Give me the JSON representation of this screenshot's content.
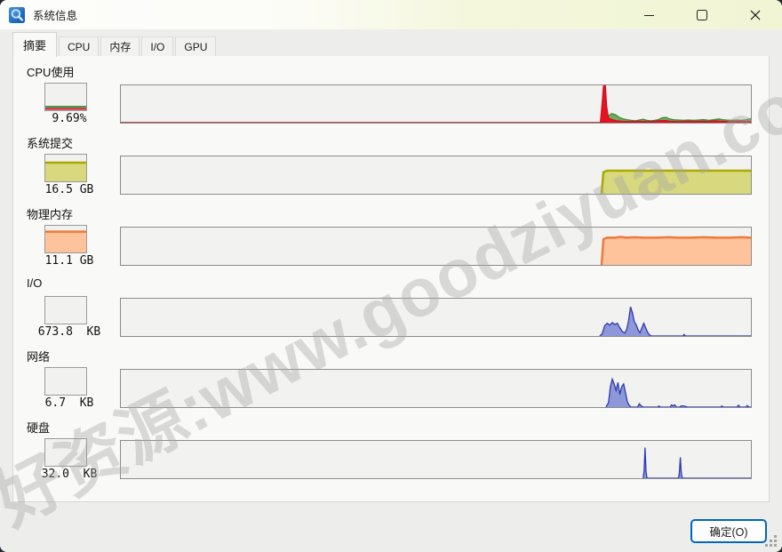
{
  "window": {
    "title": "系统信息"
  },
  "tabs": [
    {
      "label": "摘要",
      "active": true
    },
    {
      "label": "CPU",
      "active": false
    },
    {
      "label": "内存",
      "active": false
    },
    {
      "label": "I/O",
      "active": false
    },
    {
      "label": "GPU",
      "active": false
    }
  ],
  "metrics": [
    {
      "id": "cpu-usage",
      "label": "CPU使用",
      "value": "9.69%"
    },
    {
      "id": "system-commit",
      "label": "系统提交",
      "value": "16.5 GB"
    },
    {
      "id": "physical-memory",
      "label": "物理内存",
      "value": "11.1 GB"
    },
    {
      "id": "io",
      "label": "I/O",
      "value": "673.8  KB"
    },
    {
      "id": "network",
      "label": "网络",
      "value": "6.7  KB"
    },
    {
      "id": "disk",
      "label": "硬盘",
      "value": "32.0  KB"
    }
  ],
  "footer": {
    "ok_label": "确定(O)"
  },
  "watermark": {
    "text": "好资源:www.goodziyuan.com"
  },
  "colors": {
    "accent_blue": "#0067c0",
    "titlebar_tint": "#f1f5d4",
    "cpu_green_fill": "#6fae62",
    "cpu_green_stroke": "#3c8f3c",
    "cpu_kernel_red": "#e81123",
    "commit_fill": "#d8d87e",
    "commit_stroke": "#a9a902",
    "memory_fill": "#ffc39c",
    "memory_stroke": "#f0783a",
    "io_fill": "#8d97da",
    "io_stroke": "#2e3ab0",
    "graph_bg": "#f2f2f0"
  },
  "chart_data": {
    "type": "area",
    "x_range": [
      0,
      100
    ],
    "y_range": [
      0,
      100
    ],
    "x_meaning": "time, percent of history window (100 = now); activity begins ~76%",
    "y_meaning": "percent of graph full-scale height",
    "graphs": [
      {
        "name": "cpu-usage-history",
        "series": [
          {
            "name": "cpu-total",
            "fill": "#6fae62",
            "stroke": "#3c8f3c",
            "width": 1.4,
            "points": [
              [
                0,
                0
              ],
              [
                76.3,
                0
              ],
              [
                76.8,
                4
              ],
              [
                77.3,
                17
              ],
              [
                77.9,
                24
              ],
              [
                78.5,
                21
              ],
              [
                79.1,
                14
              ],
              [
                79.7,
                10
              ],
              [
                80.3,
                8
              ],
              [
                81,
                6
              ],
              [
                81.7,
                5
              ],
              [
                82.3,
                7
              ],
              [
                82.9,
                9
              ],
              [
                83.5,
                6
              ],
              [
                84.1,
                5
              ],
              [
                84.7,
                6
              ],
              [
                85.3,
                8
              ],
              [
                85.9,
                13
              ],
              [
                86.5,
                14
              ],
              [
                87.1,
                10
              ],
              [
                87.7,
                8
              ],
              [
                88.5,
                7
              ],
              [
                89.3,
                6
              ],
              [
                90.1,
                7
              ],
              [
                90.9,
                6
              ],
              [
                91.7,
                7
              ],
              [
                92.5,
                8
              ],
              [
                93.3,
                6
              ],
              [
                94.1,
                8
              ],
              [
                94.9,
                10
              ],
              [
                95.5,
                8
              ],
              [
                96.1,
                7
              ],
              [
                96.9,
                6
              ],
              [
                97.7,
                7
              ],
              [
                98.5,
                6
              ],
              [
                99.3,
                8
              ],
              [
                100,
                11
              ]
            ]
          },
          {
            "name": "cpu-kernel",
            "fill": "#e81123",
            "stroke": "#cf0e1e",
            "width": 1.2,
            "points": [
              [
                0,
                0
              ],
              [
                76.1,
                0
              ],
              [
                76.4,
                55
              ],
              [
                76.6,
                100
              ],
              [
                76.9,
                100
              ],
              [
                77.1,
                45
              ],
              [
                77.4,
                12
              ],
              [
                78,
                8
              ],
              [
                78.7,
                5
              ],
              [
                79.4,
                4
              ],
              [
                80.2,
                3
              ],
              [
                81.2,
                3
              ],
              [
                82.2,
                4
              ],
              [
                83.2,
                3
              ],
              [
                84.2,
                3
              ],
              [
                85.2,
                5
              ],
              [
                86.2,
                6
              ],
              [
                87.2,
                4
              ],
              [
                88.2,
                3
              ],
              [
                89.2,
                3
              ],
              [
                90.2,
                4
              ],
              [
                91.2,
                3
              ],
              [
                92.2,
                4
              ],
              [
                93.2,
                3
              ],
              [
                94.2,
                5
              ],
              [
                95.2,
                4
              ],
              [
                96.2,
                3
              ],
              [
                97.2,
                3
              ],
              [
                98.2,
                4
              ],
              [
                99.2,
                3
              ],
              [
                100,
                4
              ]
            ]
          }
        ]
      },
      {
        "name": "commit-history",
        "series": [
          {
            "name": "commit-charge",
            "fill": "#d8d87e",
            "stroke": "#a9a902",
            "width": 2.5,
            "points": [
              [
                76.3,
                0
              ],
              [
                76.6,
                58
              ],
              [
                77.2,
                62
              ],
              [
                100,
                62
              ]
            ]
          }
        ]
      },
      {
        "name": "physical-memory-history",
        "series": [
          {
            "name": "memory-used",
            "fill": "#ffc39c",
            "stroke": "#f0783a",
            "width": 2.5,
            "points": [
              [
                76.3,
                0
              ],
              [
                76.6,
                69
              ],
              [
                77.2,
                73
              ],
              [
                78.5,
                73
              ],
              [
                79.3,
                75
              ],
              [
                80.2,
                73
              ],
              [
                81.5,
                74
              ],
              [
                83,
                73
              ],
              [
                85,
                73
              ],
              [
                87,
                74
              ],
              [
                88.5,
                73
              ],
              [
                90.5,
                73
              ],
              [
                92.5,
                74
              ],
              [
                94.5,
                73
              ],
              [
                96.5,
                73
              ],
              [
                98.5,
                74
              ],
              [
                100,
                73
              ]
            ]
          }
        ]
      },
      {
        "name": "io-history",
        "series": [
          {
            "name": "io-bytes",
            "fill": "#8d97da",
            "stroke": "#2e3ab0",
            "width": 1.3,
            "points": [
              [
                76,
                0
              ],
              [
                76.4,
                6
              ],
              [
                76.8,
                28
              ],
              [
                77.2,
                34
              ],
              [
                77.6,
                29
              ],
              [
                78,
                36
              ],
              [
                78.4,
                31
              ],
              [
                78.8,
                34
              ],
              [
                79.2,
                22
              ],
              [
                79.6,
                12
              ],
              [
                80,
                8
              ],
              [
                80.3,
                18
              ],
              [
                80.6,
                42
              ],
              [
                80.9,
                78
              ],
              [
                81.2,
                62
              ],
              [
                81.5,
                38
              ],
              [
                81.8,
                30
              ],
              [
                82.1,
                16
              ],
              [
                82.4,
                9
              ],
              [
                82.7,
                22
              ],
              [
                83,
                34
              ],
              [
                83.3,
                22
              ],
              [
                83.6,
                10
              ],
              [
                83.9,
                3
              ],
              [
                84.2,
                0
              ],
              [
                89.2,
                0
              ],
              [
                89.4,
                4
              ],
              [
                89.6,
                0
              ],
              [
                100,
                0
              ]
            ]
          }
        ]
      },
      {
        "name": "network-history",
        "series": [
          {
            "name": "network-bytes",
            "fill": "#8d97da",
            "stroke": "#2e3ab0",
            "width": 1.3,
            "points": [
              [
                77,
                0
              ],
              [
                77.4,
                12
              ],
              [
                77.7,
                55
              ],
              [
                78,
                75
              ],
              [
                78.3,
                62
              ],
              [
                78.6,
                45
              ],
              [
                78.9,
                66
              ],
              [
                79.2,
                34
              ],
              [
                79.5,
                55
              ],
              [
                79.8,
                62
              ],
              [
                80.1,
                38
              ],
              [
                80.4,
                14
              ],
              [
                80.7,
                4
              ],
              [
                81,
                0
              ],
              [
                82,
                0
              ],
              [
                82.3,
                9
              ],
              [
                82.6,
                3
              ],
              [
                82.9,
                0
              ],
              [
                85.2,
                0
              ],
              [
                85.4,
                3
              ],
              [
                85.6,
                0
              ],
              [
                87.2,
                0
              ],
              [
                87.4,
                6
              ],
              [
                87.6,
                3
              ],
              [
                87.9,
                6
              ],
              [
                88.2,
                0
              ],
              [
                88.7,
                0
              ],
              [
                88.9,
                3
              ],
              [
                89.4,
                3
              ],
              [
                89.9,
                0
              ],
              [
                95.2,
                0
              ],
              [
                95.4,
                3
              ],
              [
                95.6,
                0
              ],
              [
                97.8,
                0
              ],
              [
                98,
                5
              ],
              [
                98.3,
                0
              ],
              [
                99.2,
                0
              ],
              [
                99.4,
                4
              ],
              [
                99.7,
                0
              ],
              [
                100,
                0
              ]
            ]
          }
        ]
      },
      {
        "name": "disk-history",
        "series": [
          {
            "name": "disk-bytes",
            "fill": "#8d97da",
            "stroke": "#2e3ab0",
            "width": 1.3,
            "points": [
              [
                82.9,
                0
              ],
              [
                83.05,
                20
              ],
              [
                83.2,
                82
              ],
              [
                83.35,
                20
              ],
              [
                83.5,
                0
              ],
              [
                88.5,
                0
              ],
              [
                88.65,
                15
              ],
              [
                88.8,
                56
              ],
              [
                88.95,
                15
              ],
              [
                89.1,
                0
              ],
              [
                100,
                0
              ]
            ]
          }
        ]
      }
    ],
    "mini_graphs": [
      {
        "name": "cpu-usage-mini",
        "series": [
          {
            "name": "cpu-total",
            "stroke": "#3c8f3c",
            "width": 2,
            "points": [
              [
                0,
                13
              ],
              [
                100,
                13
              ]
            ]
          },
          {
            "name": "cpu-kernel",
            "stroke": "#cf0e1e",
            "width": 2,
            "points": [
              [
                0,
                5
              ],
              [
                100,
                5
              ]
            ]
          }
        ]
      },
      {
        "name": "commit-mini",
        "series": [
          {
            "name": "commit-charge",
            "fill": "#d8d87e",
            "stroke": "#a9a902",
            "width": 2.5,
            "points": [
              [
                0,
                70
              ],
              [
                100,
                70
              ]
            ]
          }
        ]
      },
      {
        "name": "physical-memory-mini",
        "series": [
          {
            "name": "memory-used",
            "fill": "#ffc39c",
            "stroke": "#f0783a",
            "width": 2.5,
            "points": [
              [
                0,
                78
              ],
              [
                100,
                78
              ]
            ]
          }
        ]
      },
      {
        "name": "io-mini",
        "series": []
      },
      {
        "name": "network-mini",
        "series": []
      },
      {
        "name": "disk-mini",
        "series": []
      }
    ]
  }
}
